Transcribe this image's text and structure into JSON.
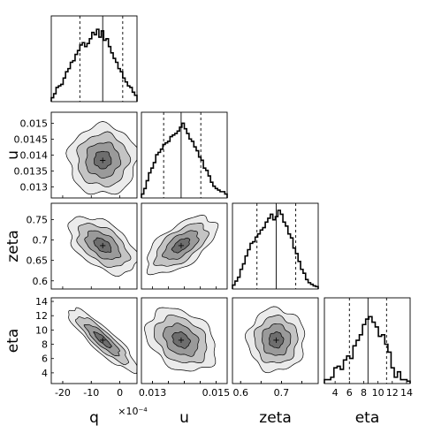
{
  "chart_data": {
    "type": "corner",
    "parameters": [
      "q",
      "u",
      "zeta",
      "eta"
    ],
    "exponent_note": "×10⁻⁴",
    "ticks": {
      "q": [
        -20,
        -10,
        0
      ],
      "u": [
        0.013,
        0.0135,
        0.014,
        0.0145,
        0.015
      ],
      "zeta": [
        0.6,
        0.65,
        0.7,
        0.75
      ],
      "eta": [
        4,
        6,
        8,
        10,
        12,
        14
      ]
    },
    "tick_labels": {
      "q": [
        "-20",
        "-10",
        "0"
      ],
      "u_x": [
        "0.013",
        "",
        "",
        "",
        "0.015"
      ],
      "u_y": [
        "0.013",
        "0.0135",
        "0.014",
        "0.0145",
        "0.015"
      ],
      "zeta_x": [
        "0.6",
        "",
        "0.7",
        ""
      ],
      "zeta_y": [
        "0.6",
        "0.65",
        "0.7",
        "0.75"
      ],
      "eta_x": [
        "4",
        "6",
        "8",
        "10",
        "12",
        "14"
      ],
      "eta_y": [
        "4",
        "6",
        "8",
        "10",
        "12",
        "14"
      ]
    },
    "ranges": {
      "q": [
        -24,
        6
      ],
      "u": [
        0.01265,
        0.01535
      ],
      "zeta": [
        0.58,
        0.79
      ],
      "eta": [
        2.5,
        14.5
      ]
    },
    "medians": {
      "q": -6,
      "u": 0.0139,
      "zeta": 0.687,
      "eta": 8.6
    },
    "quantile_16": {
      "q": -14,
      "u": 0.01335,
      "zeta": 0.64,
      "eta": 6.0
    },
    "quantile_84": {
      "q": 1,
      "u": 0.01452,
      "zeta": 0.735,
      "eta": 11.2
    },
    "histograms": {
      "q": [
        0.05,
        0.1,
        0.18,
        0.2,
        0.22,
        0.3,
        0.38,
        0.42,
        0.5,
        0.52,
        0.6,
        0.65,
        0.72,
        0.75,
        0.7,
        0.74,
        0.8,
        0.88,
        0.85,
        0.92,
        0.82,
        0.9,
        0.78,
        0.8,
        0.7,
        0.62,
        0.55,
        0.5,
        0.42,
        0.38,
        0.3,
        0.25,
        0.2,
        0.18,
        0.12,
        0.08
      ],
      "u": [
        0.05,
        0.12,
        0.22,
        0.32,
        0.38,
        0.45,
        0.55,
        0.58,
        0.62,
        0.68,
        0.7,
        0.72,
        0.78,
        0.8,
        0.82,
        0.85,
        0.9,
        0.95,
        0.88,
        0.82,
        0.75,
        0.72,
        0.65,
        0.6,
        0.52,
        0.48,
        0.38,
        0.35,
        0.28,
        0.2,
        0.15,
        0.12,
        0.1,
        0.08,
        0.08,
        0.05
      ],
      "zeta": [
        0.05,
        0.1,
        0.15,
        0.25,
        0.32,
        0.42,
        0.5,
        0.58,
        0.6,
        0.66,
        0.7,
        0.75,
        0.78,
        0.85,
        0.9,
        0.95,
        0.88,
        0.92,
        1.0,
        0.95,
        0.85,
        0.8,
        0.7,
        0.65,
        0.52,
        0.45,
        0.35,
        0.25,
        0.2,
        0.12,
        0.08,
        0.06,
        0.04,
        0.03
      ],
      "eta": [
        0.05,
        0.05,
        0.08,
        0.2,
        0.22,
        0.18,
        0.3,
        0.35,
        0.32,
        0.48,
        0.55,
        0.62,
        0.75,
        0.82,
        0.85,
        0.78,
        0.72,
        0.6,
        0.62,
        0.5,
        0.4,
        0.2,
        0.08,
        0.15,
        0.05,
        0.05,
        0.03
      ]
    },
    "contours": [
      {
        "x": "q",
        "y": "u",
        "cx": -6,
        "cy": 0.01385,
        "sx": 6,
        "sy": 0.00055,
        "rho": 0.0
      },
      {
        "x": "q",
        "y": "zeta",
        "cx": -6,
        "cy": 0.687,
        "sx": 6,
        "sy": 0.035,
        "rho": -0.5
      },
      {
        "x": "u",
        "y": "zeta",
        "cx": 0.0139,
        "cy": 0.687,
        "sx": 0.00055,
        "sy": 0.035,
        "rho": 0.6
      },
      {
        "x": "q",
        "y": "eta",
        "cx": -6,
        "cy": 8.6,
        "sx": 6,
        "sy": 2.2,
        "rho": -0.88
      },
      {
        "x": "u",
        "y": "eta",
        "cx": 0.0139,
        "cy": 8.6,
        "sx": 0.00055,
        "sy": 2.2,
        "rho": -0.3
      },
      {
        "x": "zeta",
        "y": "eta",
        "cx": 0.687,
        "cy": 8.6,
        "sx": 0.035,
        "sy": 2.2,
        "rho": 0.0
      }
    ],
    "contour_levels_sigma": [
      0.5,
      1.0,
      1.5,
      2.0
    ],
    "contour_fills": [
      "#ebebeb",
      "#c4c4c4",
      "#9a9a9a",
      "#6e6e6e"
    ]
  }
}
